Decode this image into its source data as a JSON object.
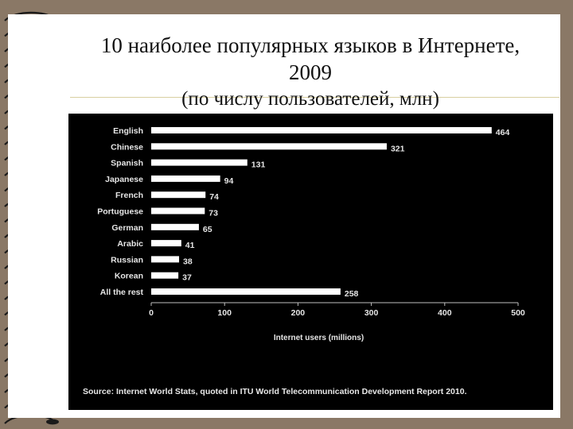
{
  "slide": {
    "title": "10 наиболее популярных языков в Интернете, 2009",
    "subtitle": "(по числу пользователей, млн)"
  },
  "source": "Source: Internet World Stats, quoted in ITU World Telecommunication Development Report 2010.",
  "colors": {
    "background": "#8a7866",
    "chart_background": "#000000",
    "bars": "#ffffff"
  },
  "chart_data": {
    "type": "bar",
    "orientation": "horizontal",
    "categories": [
      "English",
      "Chinese",
      "Spanish",
      "Japanese",
      "French",
      "Portuguese",
      "German",
      "Arabic",
      "Russian",
      "Korean",
      "All the rest"
    ],
    "values": [
      464,
      321,
      131,
      94,
      74,
      73,
      65,
      41,
      38,
      37,
      258
    ],
    "xlabel": "Internet users (millions)",
    "xlim": [
      0,
      500
    ],
    "xticks": [
      0,
      100,
      200,
      300,
      400,
      500
    ],
    "grid": false,
    "data_labels": true
  }
}
